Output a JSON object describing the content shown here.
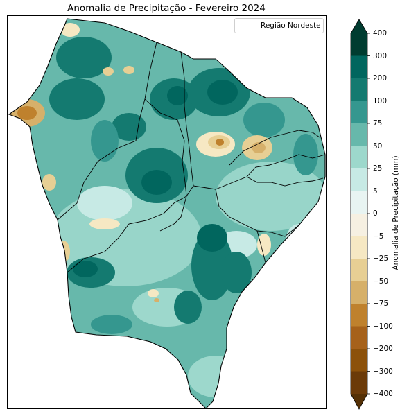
{
  "title": "Anomalia de Precipitação - Fevereiro 2024",
  "legend": {
    "label": "Região Nordeste",
    "line_color": "#000000"
  },
  "colorbar": {
    "label": "Anomalia de Precipitação (mm)",
    "ticks": [
      "400",
      "300",
      "200",
      "100",
      "75",
      "50",
      "25",
      "5",
      "0",
      "−5",
      "−25",
      "−50",
      "−75",
      "−100",
      "−200",
      "−300",
      "−400"
    ],
    "colors_top_to_bottom": [
      "#003c30",
      "#01665e",
      "#147a70",
      "#35978f",
      "#67b8ab",
      "#9dd8cc",
      "#c7eae5",
      "#e8f4f2",
      "#f6f0e2",
      "#f6e8c3",
      "#e7cf94",
      "#d6b06a",
      "#bf812d",
      "#a6611a",
      "#8c510a",
      "#6b3a08",
      "#543005"
    ],
    "extend": "both"
  },
  "chart_data": {
    "type": "heatmap",
    "title": "Anomalia de Precipitação - Fevereiro 2024",
    "colorbar_label": "Anomalia de Precipitação (mm)",
    "levels": [
      -400,
      -300,
      -200,
      -100,
      -75,
      -50,
      -25,
      -5,
      0,
      5,
      25,
      50,
      75,
      100,
      200,
      300,
      400
    ],
    "legend_entries": [
      "Região Nordeste"
    ],
    "legend_placement": "top-right"
  }
}
